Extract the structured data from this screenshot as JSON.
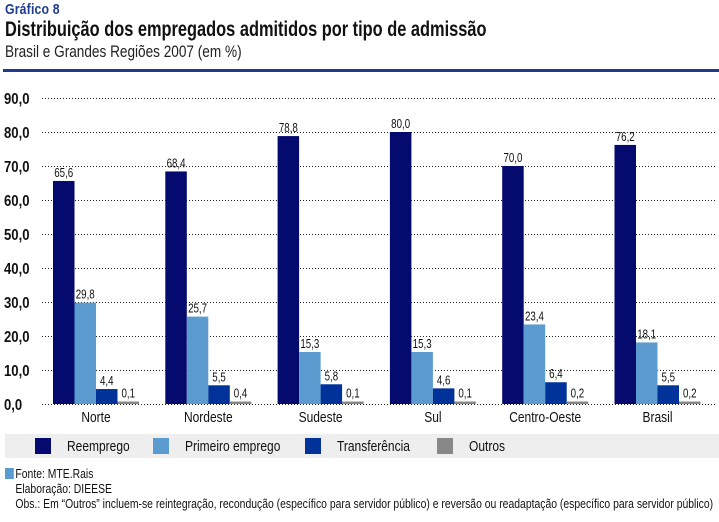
{
  "header": {
    "label": "Gráfico 8",
    "title": "Distribuição dos empregados admitidos por tipo de admissão",
    "subtitle": "Brasil e Grandes Regiões 2007 (em %)"
  },
  "colors": {
    "accent": "#1f3c8c",
    "reemprego": "#050a6e",
    "primeiro_emprego": "#5b9bd0",
    "transferencia": "#00339a",
    "outros": "#888888"
  },
  "chart_data": {
    "type": "bar",
    "title": "Distribuição dos empregados admitidos por tipo de admissão",
    "subtitle": "Brasil e Grandes Regiões 2007 (em %)",
    "xlabel": "",
    "ylabel": "",
    "ylim": [
      0,
      90
    ],
    "yticks": [
      "0,0",
      "10,0",
      "20,0",
      "30,0",
      "40,0",
      "50,0",
      "60,0",
      "70,0",
      "80,0",
      "90,0"
    ],
    "grid": true,
    "legend_position": "bottom",
    "categories": [
      "Norte",
      "Nordeste",
      "Sudeste",
      "Sul",
      "Centro-Oeste",
      "Brasil"
    ],
    "series": [
      {
        "name": "Reemprego",
        "color": "#050a6e",
        "values": [
          65.6,
          68.4,
          78.8,
          80.0,
          70.0,
          76.2
        ],
        "labels": [
          "65,6",
          "68,4",
          "78,8",
          "80,0",
          "70,0",
          "76,2"
        ]
      },
      {
        "name": "Primeiro emprego",
        "color": "#5b9bd0",
        "values": [
          29.8,
          25.7,
          15.3,
          15.3,
          23.4,
          18.1
        ],
        "labels": [
          "29,8",
          "25,7",
          "15,3",
          "15,3",
          "23,4",
          "18,1"
        ]
      },
      {
        "name": "Transferência",
        "color": "#00339a",
        "values": [
          4.4,
          5.5,
          5.8,
          4.6,
          6.4,
          5.5
        ],
        "labels": [
          "4,4",
          "5,5",
          "5,8",
          "4,6",
          "6,4",
          "5,5"
        ]
      },
      {
        "name": "Outros",
        "color": "#888888",
        "values": [
          0.1,
          0.4,
          0.1,
          0.1,
          0.2,
          0.2
        ],
        "labels": [
          "0,1",
          "0,4",
          "0,1",
          "0,1",
          "0,2",
          "0,2"
        ]
      }
    ]
  },
  "legend": {
    "items": [
      "Reemprego",
      "Primeiro emprego",
      "Transferência",
      "Outros"
    ]
  },
  "footer": {
    "source": "Fonte: MTE.Rais",
    "elaboration": "Elaboração: DIEESE",
    "note": "Obs.: Em “Outros” incluem-se reintegração, recondução (específico para servidor público) e reversão ou readaptação (específico para servidor público)"
  }
}
